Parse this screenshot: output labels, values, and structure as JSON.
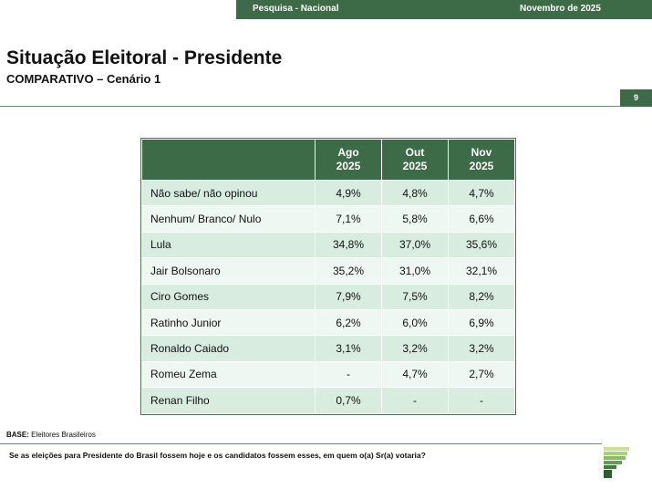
{
  "header": {
    "survey": "Pesquisa - Nacional",
    "date": "Novembro de 2025"
  },
  "title": "Situação Eleitoral - Presidente",
  "subtitle": "COMPARATIVO – Cenário 1",
  "page_number": "9",
  "table": {
    "columns": [
      {
        "month": "Ago",
        "year": "2025"
      },
      {
        "month": "Out",
        "year": "2025"
      },
      {
        "month": "Nov",
        "year": "2025"
      }
    ],
    "rows": [
      [
        "Não sabe/ não opinou",
        "4,9%",
        "4,8%",
        "4,7%"
      ],
      [
        "Nenhum/ Branco/ Nulo",
        "7,1%",
        "5,8%",
        "6,6%"
      ],
      [
        "Lula",
        "34,8%",
        "37,0%",
        "35,6%"
      ],
      [
        "Jair Bolsonaro",
        "35,2%",
        "31,0%",
        "32,1%"
      ],
      [
        "Ciro Gomes",
        "7,9%",
        "7,5%",
        "8,2%"
      ],
      [
        "Ratinho Junior",
        "6,2%",
        "6,0%",
        "6,9%"
      ],
      [
        "Ronaldo Caiado",
        "3,1%",
        "3,2%",
        "3,2%"
      ],
      [
        "Romeu Zema",
        "-",
        "4,7%",
        "2,7%"
      ],
      [
        "Renan Filho",
        "0,7%",
        "-",
        "-"
      ]
    ]
  },
  "base": {
    "label": "BASE:",
    "value": "Eleitores Brasileiros"
  },
  "question": "Se as eleições para Presidente do Brasil fossem hoje e os candidatos fossem esses, em quem o(a) Sr(a) votaria?"
}
